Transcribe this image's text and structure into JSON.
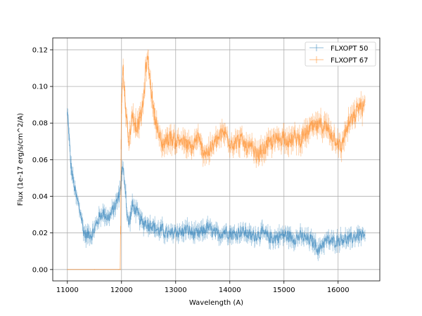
{
  "chart_data": {
    "type": "line",
    "title": "",
    "xlabel": "Wavelength (A)",
    "ylabel": "Flux (1e-17 erg/s/cm^2/A)",
    "xlim": [
      10730,
      16770
    ],
    "ylim": [
      -0.0062,
      0.1265
    ],
    "xticks": [
      11000,
      12000,
      13000,
      14000,
      15000,
      16000
    ],
    "yticks": [
      0.0,
      0.02,
      0.04,
      0.06,
      0.08,
      0.1,
      0.12
    ],
    "ytick_labels": [
      "0.00",
      "0.02",
      "0.04",
      "0.06",
      "0.08",
      "0.10",
      "0.12"
    ],
    "grid": true,
    "legend_position": "top-right",
    "error_bars": true,
    "series": [
      {
        "name": "FLXOPT 50",
        "color": "#1f77b4",
        "x": [
          11000,
          11020,
          11040,
          11060,
          11080,
          11100,
          11130,
          11160,
          11200,
          11250,
          11300,
          11350,
          11400,
          11450,
          11500,
          11550,
          11600,
          11650,
          11700,
          11750,
          11800,
          11850,
          11900,
          11950,
          11980,
          12000,
          12020,
          12050,
          12080,
          12100,
          12130,
          12160,
          12200,
          12250,
          12300,
          12350,
          12400,
          12450,
          12500,
          12550,
          12600,
          12650,
          12700,
          12750,
          12800,
          12900,
          13000,
          13100,
          13200,
          13300,
          13400,
          13500,
          13600,
          13700,
          13800,
          13900,
          14000,
          14100,
          14200,
          14300,
          14400,
          14500,
          14600,
          14700,
          14800,
          14900,
          15000,
          15100,
          15200,
          15300,
          15400,
          15500,
          15600,
          15650,
          15700,
          15800,
          15900,
          16000,
          16100,
          16200,
          16300,
          16400,
          16500
        ],
        "y": [
          0.085,
          0.079,
          0.068,
          0.058,
          0.054,
          0.05,
          0.045,
          0.04,
          0.036,
          0.03,
          0.021,
          0.018,
          0.02,
          0.019,
          0.022,
          0.026,
          0.029,
          0.031,
          0.03,
          0.028,
          0.03,
          0.033,
          0.036,
          0.04,
          0.045,
          0.052,
          0.055,
          0.05,
          0.042,
          0.03,
          0.025,
          0.028,
          0.035,
          0.033,
          0.03,
          0.027,
          0.025,
          0.026,
          0.024,
          0.025,
          0.023,
          0.022,
          0.021,
          0.022,
          0.02,
          0.019,
          0.021,
          0.02,
          0.022,
          0.02,
          0.019,
          0.021,
          0.023,
          0.02,
          0.019,
          0.021,
          0.02,
          0.019,
          0.021,
          0.02,
          0.018,
          0.019,
          0.02,
          0.018,
          0.017,
          0.018,
          0.019,
          0.018,
          0.017,
          0.018,
          0.017,
          0.016,
          0.013,
          0.01,
          0.014,
          0.016,
          0.015,
          0.016,
          0.017,
          0.016,
          0.018,
          0.019,
          0.017
        ]
      },
      {
        "name": "FLXOPT 67",
        "color": "#ff7f0e",
        "x": [
          11000,
          11500,
          11950,
          11980,
          11990,
          12000,
          12010,
          12030,
          12060,
          12080,
          12100,
          12130,
          12160,
          12200,
          12250,
          12300,
          12350,
          12400,
          12450,
          12480,
          12500,
          12520,
          12550,
          12580,
          12600,
          12650,
          12700,
          12750,
          12800,
          12900,
          13000,
          13100,
          13200,
          13300,
          13400,
          13500,
          13600,
          13700,
          13800,
          13900,
          14000,
          14100,
          14200,
          14300,
          14400,
          14500,
          14600,
          14700,
          14800,
          14900,
          15000,
          15100,
          15200,
          15300,
          15400,
          15500,
          15600,
          15700,
          15800,
          15900,
          16000,
          16050,
          16100,
          16200,
          16300,
          16350,
          16400,
          16450,
          16500
        ],
        "y": [
          0.0,
          0.0,
          0.0,
          0.0,
          0.06,
          0.09,
          0.1,
          0.11,
          0.095,
          0.088,
          0.08,
          0.07,
          0.075,
          0.085,
          0.08,
          0.078,
          0.083,
          0.09,
          0.11,
          0.115,
          0.112,
          0.105,
          0.098,
          0.09,
          0.085,
          0.08,
          0.072,
          0.068,
          0.07,
          0.072,
          0.07,
          0.071,
          0.068,
          0.066,
          0.072,
          0.065,
          0.064,
          0.068,
          0.072,
          0.075,
          0.07,
          0.069,
          0.071,
          0.067,
          0.066,
          0.062,
          0.065,
          0.068,
          0.07,
          0.071,
          0.073,
          0.07,
          0.072,
          0.071,
          0.074,
          0.077,
          0.078,
          0.079,
          0.077,
          0.073,
          0.07,
          0.065,
          0.072,
          0.08,
          0.083,
          0.087,
          0.09,
          0.088,
          0.09
        ]
      }
    ]
  }
}
